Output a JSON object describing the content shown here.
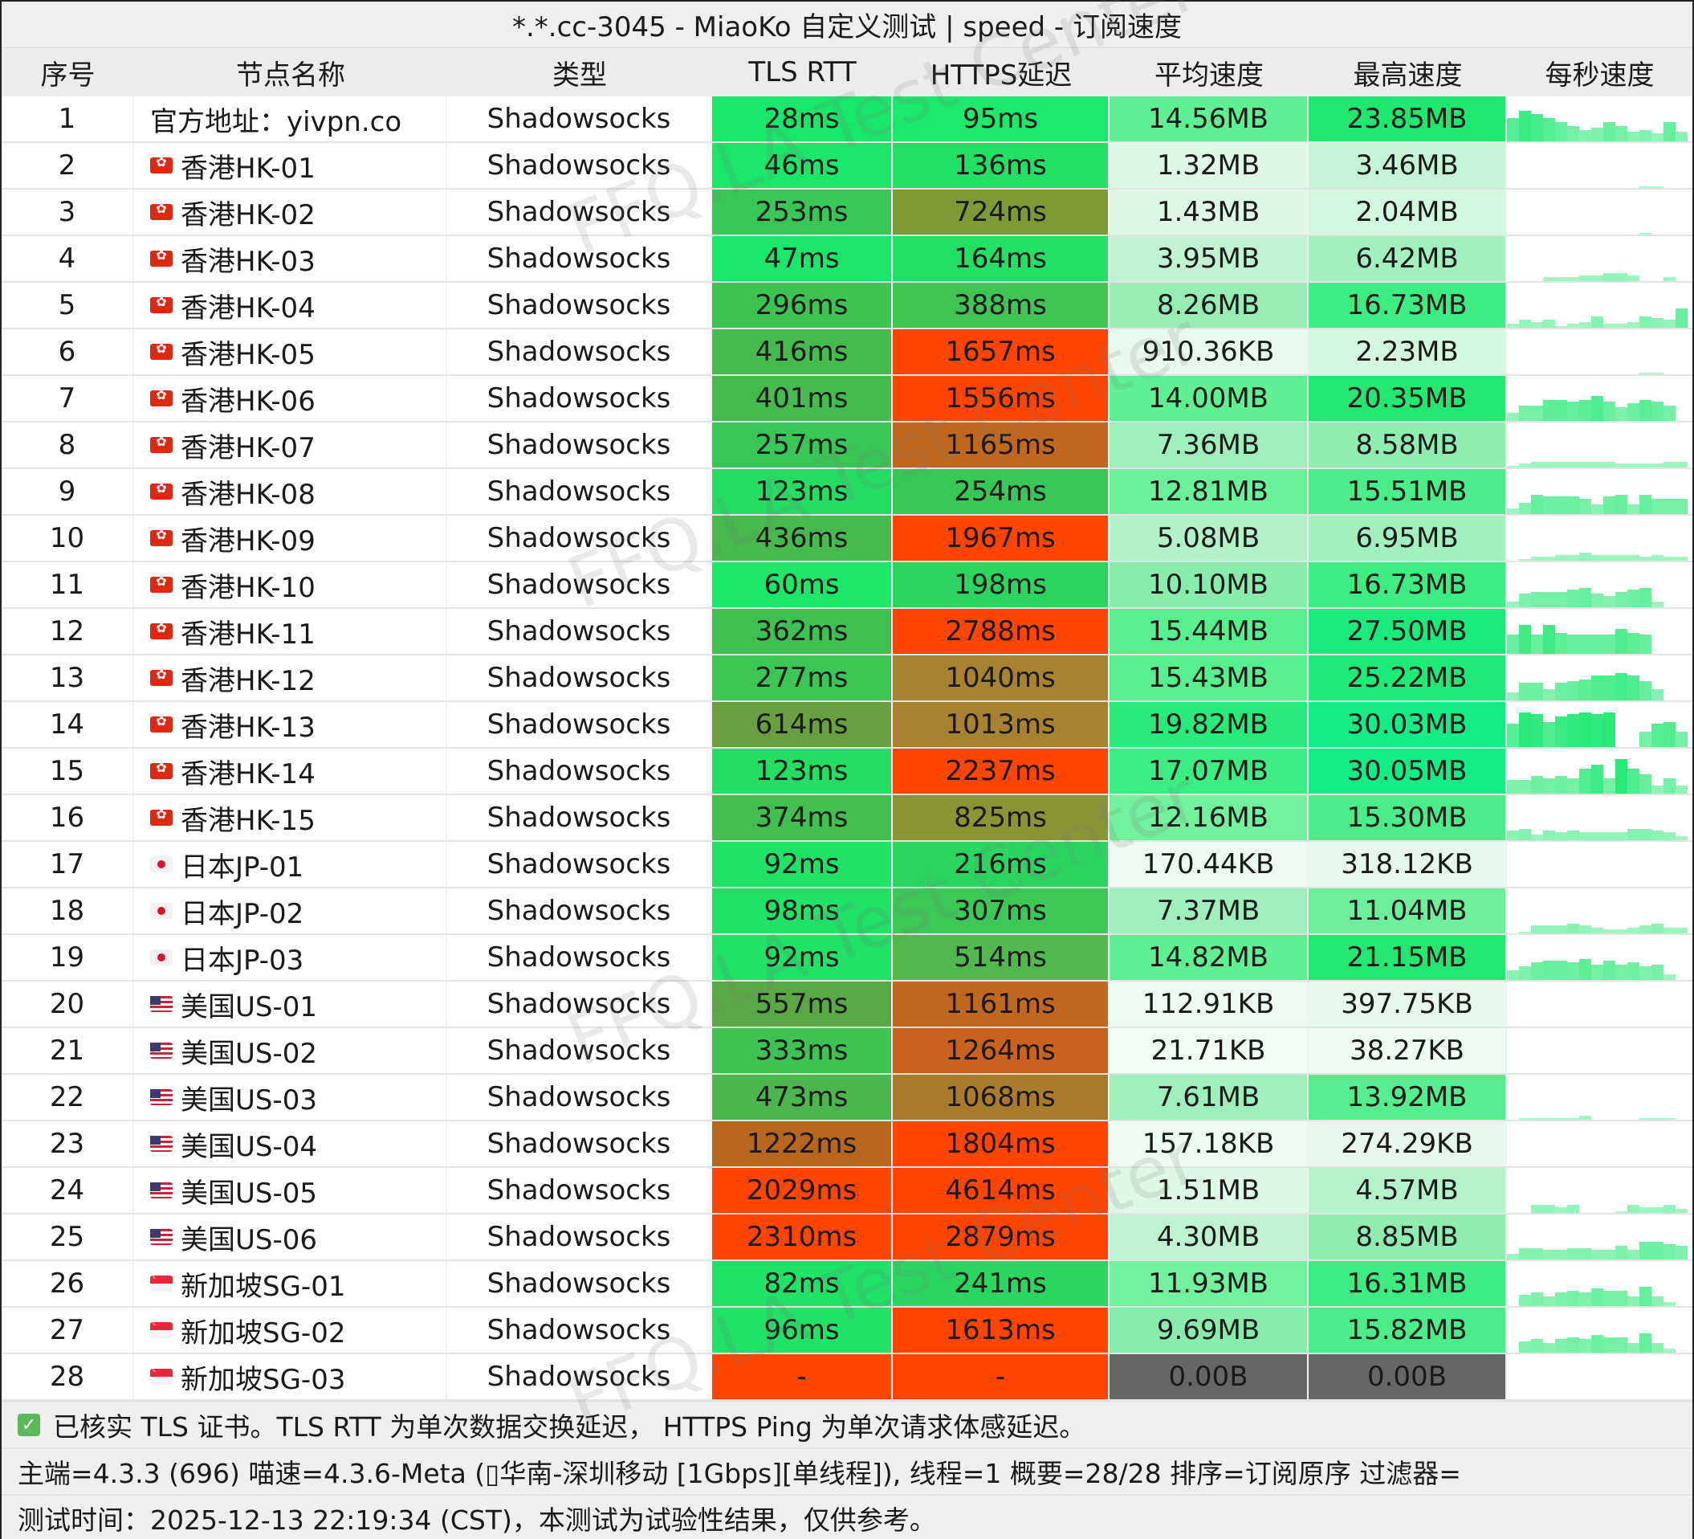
{
  "title": "*.*.cc-3045 - MiaoKo 自定义测试 | speed - 订阅速度",
  "headers": [
    "序号",
    "节点名称",
    "类型",
    "TLS RTT",
    "HTTPS延迟",
    "平均速度",
    "最高速度",
    "每秒速度"
  ],
  "rows": [
    {
      "seq": "1",
      "flag": "none",
      "name": "官方地址：yivpn.co",
      "type": "Shadowsocks",
      "tls": "28ms",
      "tls_color": "#18e86a",
      "https": "95ms",
      "https_color": "#1be96b",
      "avg": "14.56MB",
      "avg_color": "#5ff093",
      "max": "23.85MB",
      "max_color": "#1ee870",
      "spark": [
        12,
        16,
        14,
        12,
        10,
        8,
        6,
        7,
        10,
        8,
        5,
        6,
        4,
        10,
        5
      ]
    },
    {
      "seq": "2",
      "flag": "hk",
      "name": "香港HK-01",
      "type": "Shadowsocks",
      "tls": "46ms",
      "tls_color": "#1ae669",
      "https": "136ms",
      "https_color": "#22e064",
      "avg": "1.32MB",
      "avg_color": "#ddf8e6",
      "max": "3.46MB",
      "max_color": "#c6f4d6",
      "spark": [
        0,
        0,
        0,
        0,
        0,
        0,
        0,
        0,
        0,
        0,
        0,
        1,
        1,
        0,
        0
      ]
    },
    {
      "seq": "3",
      "flag": "hk",
      "name": "香港HK-02",
      "type": "Shadowsocks",
      "tls": "253ms",
      "tls_color": "#38c756",
      "https": "724ms",
      "https_color": "#7d9a35",
      "avg": "1.43MB",
      "avg_color": "#ddf8e6",
      "max": "2.04MB",
      "max_color": "#d4f7df",
      "spark": [
        0,
        0,
        0,
        0,
        0,
        0,
        0,
        0,
        0,
        0,
        0,
        1,
        0,
        0,
        0
      ]
    },
    {
      "seq": "4",
      "flag": "hk",
      "name": "香港HK-03",
      "type": "Shadowsocks",
      "tls": "47ms",
      "tls_color": "#1ae669",
      "https": "164ms",
      "https_color": "#22e064",
      "avg": "3.95MB",
      "avg_color": "#c0f3d1",
      "max": "6.42MB",
      "max_color": "#a2f0be",
      "spark": [
        0,
        0,
        0,
        2,
        2,
        2,
        3,
        3,
        4,
        4,
        3,
        0,
        0,
        2,
        0
      ]
    },
    {
      "seq": "5",
      "flag": "hk",
      "name": "香港HK-04",
      "type": "Shadowsocks",
      "tls": "296ms",
      "tls_color": "#3cc354",
      "https": "388ms",
      "https_color": "#3fc455",
      "avg": "8.26MB",
      "avg_color": "#96eeb5",
      "max": "16.73MB",
      "max_color": "#3ded82",
      "spark": [
        2,
        4,
        3,
        4,
        1,
        2,
        3,
        6,
        2,
        2,
        3,
        6,
        5,
        4,
        10
      ]
    },
    {
      "seq": "6",
      "flag": "hk",
      "name": "香港HK-05",
      "type": "Shadowsocks",
      "tls": "416ms",
      "tls_color": "#45bb4f",
      "https": "1657ms",
      "https_color": "#ff4500",
      "avg": "910.36KB",
      "avg_color": "#e8faee",
      "max": "2.23MB",
      "max_color": "#d4f7df",
      "spark": [
        0,
        0,
        0,
        0,
        0,
        0,
        0,
        0,
        0,
        0,
        0,
        1,
        1,
        0,
        0
      ]
    },
    {
      "seq": "7",
      "flag": "hk",
      "name": "香港HK-06",
      "type": "Shadowsocks",
      "tls": "401ms",
      "tls_color": "#45bb4f",
      "https": "1556ms",
      "https_color": "#ff4500",
      "avg": "14.00MB",
      "avg_color": "#5ff093",
      "max": "20.35MB",
      "max_color": "#22e872",
      "spark": [
        4,
        8,
        8,
        11,
        11,
        10,
        11,
        13,
        10,
        7,
        9,
        11,
        10,
        8,
        0
      ]
    },
    {
      "seq": "8",
      "flag": "hk",
      "name": "香港HK-07",
      "type": "Shadowsocks",
      "tls": "257ms",
      "tls_color": "#38c756",
      "https": "1165ms",
      "https_color": "#c0681f",
      "avg": "7.36MB",
      "avg_color": "#9eefbb",
      "max": "8.58MB",
      "max_color": "#8fedb0",
      "spark": [
        1,
        2,
        3,
        3,
        3,
        3,
        3,
        3,
        3,
        2,
        2,
        2,
        2,
        3,
        3
      ]
    },
    {
      "seq": "9",
      "flag": "hk",
      "name": "香港HK-08",
      "type": "Shadowsocks",
      "tls": "123ms",
      "tls_color": "#24dd63",
      "https": "254ms",
      "https_color": "#38c756",
      "avg": "12.81MB",
      "avg_color": "#6cf19b",
      "max": "15.51MB",
      "max_color": "#4aed89",
      "spark": [
        3,
        6,
        10,
        9,
        9,
        9,
        8,
        5,
        9,
        10,
        5,
        10,
        8,
        8,
        8
      ]
    },
    {
      "seq": "10",
      "flag": "hk",
      "name": "香港HK-09",
      "type": "Shadowsocks",
      "tls": "436ms",
      "tls_color": "#47b94e",
      "https": "1967ms",
      "https_color": "#ff4500",
      "avg": "5.08MB",
      "avg_color": "#b3f2c8",
      "max": "6.95MB",
      "max_color": "#a2f0be",
      "spark": [
        0,
        1,
        2,
        2,
        3,
        3,
        4,
        3,
        3,
        3,
        3,
        2,
        3,
        2,
        2
      ]
    },
    {
      "seq": "11",
      "flag": "hk",
      "name": "香港HK-10",
      "type": "Shadowsocks",
      "tls": "60ms",
      "tls_color": "#1be768",
      "https": "198ms",
      "https_color": "#2ad660",
      "avg": "10.10MB",
      "avg_color": "#88edac",
      "max": "16.73MB",
      "max_color": "#3ded82",
      "spark": [
        3,
        7,
        8,
        8,
        8,
        9,
        10,
        7,
        6,
        8,
        9,
        10,
        3,
        0,
        0
      ]
    },
    {
      "seq": "12",
      "flag": "hk",
      "name": "香港HK-11",
      "type": "Shadowsocks",
      "tls": "362ms",
      "tls_color": "#3fc052",
      "https": "2788ms",
      "https_color": "#ff4500",
      "avg": "15.44MB",
      "avg_color": "#58ef8e",
      "max": "27.50MB",
      "max_color": "#18eb7c",
      "spark": [
        10,
        15,
        10,
        15,
        11,
        10,
        10,
        10,
        10,
        13,
        11,
        10,
        0,
        0,
        0
      ]
    },
    {
      "seq": "13",
      "flag": "hk",
      "name": "香港HK-12",
      "type": "Shadowsocks",
      "tls": "277ms",
      "tls_color": "#3ac555",
      "https": "1040ms",
      "https_color": "#a78331",
      "avg": "15.43MB",
      "avg_color": "#58ef8e",
      "max": "25.22MB",
      "max_color": "#1eea78",
      "spark": [
        4,
        9,
        9,
        6,
        9,
        10,
        11,
        13,
        13,
        14,
        13,
        10,
        6,
        0,
        0
      ]
    },
    {
      "seq": "14",
      "flag": "hk",
      "name": "香港HK-13",
      "type": "Shadowsocks",
      "tls": "614ms",
      "tls_color": "#6a9f3f",
      "https": "1013ms",
      "https_color": "#a78331",
      "avg": "19.82MB",
      "avg_color": "#29eb7a",
      "max": "30.03MB",
      "max_color": "#14ed86",
      "spark": [
        12,
        18,
        17,
        13,
        16,
        17,
        18,
        17,
        18,
        0,
        0,
        8,
        12,
        13,
        8
      ]
    },
    {
      "seq": "15",
      "flag": "hk",
      "name": "香港HK-14",
      "type": "Shadowsocks",
      "tls": "123ms",
      "tls_color": "#24dd63",
      "https": "2237ms",
      "https_color": "#ff4500",
      "avg": "17.07MB",
      "avg_color": "#3ced83",
      "max": "30.05MB",
      "max_color": "#14ed86",
      "spark": [
        7,
        7,
        9,
        8,
        9,
        8,
        13,
        15,
        8,
        18,
        13,
        10,
        4,
        8,
        4
      ]
    },
    {
      "seq": "16",
      "flag": "hk",
      "name": "香港HK-15",
      "type": "Shadowsocks",
      "tls": "374ms",
      "tls_color": "#41bf51",
      "https": "825ms",
      "https_color": "#8a9435",
      "avg": "12.16MB",
      "avg_color": "#72f19f",
      "max": "15.30MB",
      "max_color": "#4aed89",
      "spark": [
        5,
        6,
        3,
        5,
        4,
        5,
        4,
        4,
        4,
        4,
        6,
        6,
        5,
        4,
        2
      ]
    },
    {
      "seq": "17",
      "flag": "jp",
      "name": "日本JP-01",
      "type": "Shadowsocks",
      "tls": "92ms",
      "tls_color": "#1fe266",
      "https": "216ms",
      "https_color": "#2ad660",
      "avg": "170.44KB",
      "avg_color": "#eefbf2",
      "max": "318.12KB",
      "max_color": "#e6f9ec",
      "spark": [
        0,
        0,
        0,
        0,
        0,
        0,
        0,
        0,
        0,
        0,
        0,
        0,
        0,
        0,
        0
      ]
    },
    {
      "seq": "18",
      "flag": "jp",
      "name": "日本JP-02",
      "type": "Shadowsocks",
      "tls": "98ms",
      "tls_color": "#1fe266",
      "https": "307ms",
      "https_color": "#3cc757",
      "avg": "7.37MB",
      "avg_color": "#9eefbb",
      "max": "11.04MB",
      "max_color": "#6eef9e",
      "spark": [
        0,
        1,
        4,
        4,
        4,
        5,
        4,
        3,
        2,
        2,
        3,
        4,
        5,
        3,
        3
      ]
    },
    {
      "seq": "19",
      "flag": "jp",
      "name": "日本JP-03",
      "type": "Shadowsocks",
      "tls": "92ms",
      "tls_color": "#1fe266",
      "https": "514ms",
      "https_color": "#50b84c",
      "avg": "14.82MB",
      "avg_color": "#5ff093",
      "max": "21.15MB",
      "max_color": "#22e872",
      "spark": [
        5,
        7,
        9,
        10,
        10,
        9,
        11,
        8,
        10,
        8,
        9,
        7,
        8,
        3,
        0
      ]
    },
    {
      "seq": "20",
      "flag": "us",
      "name": "美国US-01",
      "type": "Shadowsocks",
      "tls": "557ms",
      "tls_color": "#5aa845",
      "https": "1161ms",
      "https_color": "#c0681f",
      "avg": "112.91KB",
      "avg_color": "#eefbf2",
      "max": "397.75KB",
      "max_color": "#e6f9ec",
      "spark": [
        0,
        0,
        0,
        0,
        0,
        0,
        0,
        0,
        0,
        0,
        0,
        0,
        0,
        0,
        0
      ]
    },
    {
      "seq": "21",
      "flag": "us",
      "name": "美国US-02",
      "type": "Shadowsocks",
      "tls": "333ms",
      "tls_color": "#3fc254",
      "https": "1264ms",
      "https_color": "#c9621c",
      "avg": "21.71KB",
      "avg_color": "#f0fbf3",
      "max": "38.27KB",
      "max_color": "#eefbf2",
      "spark": [
        0,
        0,
        0,
        0,
        0,
        0,
        0,
        0,
        0,
        0,
        0,
        0,
        0,
        0,
        0
      ]
    },
    {
      "seq": "22",
      "flag": "us",
      "name": "美国US-03",
      "type": "Shadowsocks",
      "tls": "473ms",
      "tls_color": "#4ab64d",
      "https": "1068ms",
      "https_color": "#a97b2c",
      "avg": "7.61MB",
      "avg_color": "#9eefbb",
      "max": "13.92MB",
      "max_color": "#55ee8f",
      "spark": [
        0,
        1,
        1,
        1,
        1,
        1,
        2,
        0,
        0,
        0,
        0,
        1,
        1,
        1,
        0
      ]
    },
    {
      "seq": "23",
      "flag": "us",
      "name": "美国US-04",
      "type": "Shadowsocks",
      "tls": "1222ms",
      "tls_color": "#b8661e",
      "https": "1804ms",
      "https_color": "#ff4500",
      "avg": "157.18KB",
      "avg_color": "#eefbf2",
      "max": "274.29KB",
      "max_color": "#e6f9ec",
      "spark": [
        0,
        0,
        0,
        0,
        0,
        0,
        0,
        0,
        0,
        0,
        0,
        0,
        0,
        0,
        0
      ]
    },
    {
      "seq": "24",
      "flag": "us",
      "name": "美国US-05",
      "type": "Shadowsocks",
      "tls": "2029ms",
      "tls_color": "#ff4500",
      "https": "4614ms",
      "https_color": "#ff4500",
      "avg": "1.51MB",
      "avg_color": "#ddf8e6",
      "max": "4.57MB",
      "max_color": "#b4f2ca",
      "spark": [
        0,
        0,
        4,
        4,
        3,
        4,
        0,
        0,
        0,
        1,
        4,
        3,
        3,
        4,
        2
      ]
    },
    {
      "seq": "25",
      "flag": "us",
      "name": "美国US-06",
      "type": "Shadowsocks",
      "tls": "2310ms",
      "tls_color": "#ff4500",
      "https": "2879ms",
      "https_color": "#ff4500",
      "avg": "4.30MB",
      "avg_color": "#bdf3cf",
      "max": "8.85MB",
      "max_color": "#8fedb0",
      "spark": [
        3,
        6,
        6,
        5,
        5,
        6,
        6,
        5,
        5,
        7,
        5,
        9,
        9,
        8,
        7
      ]
    },
    {
      "seq": "26",
      "flag": "sg",
      "name": "新加坡SG-01",
      "type": "Shadowsocks",
      "tls": "82ms",
      "tls_color": "#1ee367",
      "https": "241ms",
      "https_color": "#2ad660",
      "avg": "11.93MB",
      "avg_color": "#72f19f",
      "max": "16.31MB",
      "max_color": "#3ded82",
      "spark": [
        0,
        6,
        7,
        5,
        7,
        8,
        7,
        9,
        8,
        8,
        5,
        10,
        5,
        2,
        0
      ]
    },
    {
      "seq": "27",
      "flag": "sg",
      "name": "新加坡SG-02",
      "type": "Shadowsocks",
      "tls": "96ms",
      "tls_color": "#1fe266",
      "https": "1613ms",
      "https_color": "#ff4500",
      "avg": "9.69MB",
      "avg_color": "#88edac",
      "max": "15.82MB",
      "max_color": "#4aed89",
      "spark": [
        0,
        6,
        7,
        5,
        7,
        8,
        7,
        9,
        8,
        8,
        5,
        10,
        5,
        2,
        0
      ]
    },
    {
      "seq": "28",
      "flag": "sg",
      "name": "新加坡SG-03",
      "type": "Shadowsocks",
      "tls": "-",
      "tls_color": "#ff4500",
      "https": "-",
      "https_color": "#ff4500",
      "avg": "0.00B",
      "avg_color": "#666666",
      "max": "0.00B",
      "max_color": "#666666",
      "spark": [
        0,
        0,
        0,
        0,
        0,
        0,
        0,
        0,
        0,
        0,
        0,
        0,
        0,
        0,
        0
      ]
    }
  ],
  "footer": {
    "check_icon": "check-icon",
    "line1": "已核实 TLS 证书。TLS RTT 为单次数据交换延迟， HTTPS Ping 为单次请求体感延迟。",
    "line2": "主端=4.3.3 (696) 喵速=4.3.6-Meta (▯华南-深圳移动 [1Gbps][单线程]), 线程=1 概要=28/28 排序=订阅原序 过滤器=",
    "line3": "测试时间：2025-12-13 22:19:34 (CST)，本测试为试验性结果，仅供参考。"
  },
  "watermark": "FFQ.LA Test Center"
}
